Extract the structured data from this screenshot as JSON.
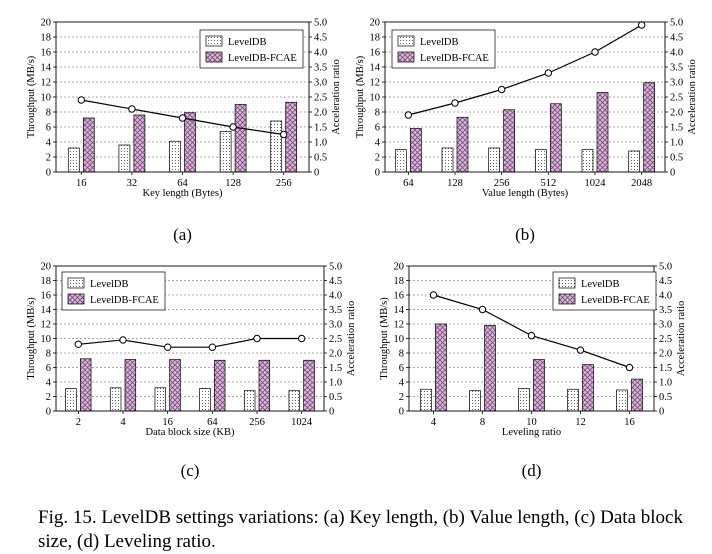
{
  "caption": "Fig. 15.  LevelDB settings variations: (a) Key length, (b) Value length, (c) Data block size, (d) Leveling ratio.",
  "colors": {
    "leveldb_fill": "#ffffff",
    "fcae_fill": "#d9b8d9",
    "pattern_dots": "#555555",
    "line": "#000000"
  },
  "chart_data": [
    {
      "type": "bar",
      "panel_label": "(a)",
      "xlabel": "Key length (Bytes)",
      "ylabel": "Throughput (MB/s)",
      "y2label": "Acceleration ratio",
      "categories": [
        "16",
        "32",
        "64",
        "128",
        "256"
      ],
      "ylim": [
        0,
        20
      ],
      "yticks": [
        0,
        2,
        4,
        6,
        8,
        10,
        12,
        14,
        16,
        18,
        20
      ],
      "y2lim": [
        0,
        5
      ],
      "y2ticks": [
        "0",
        "0.5",
        "1.0",
        "1.5",
        "2.0",
        "2.5",
        "3.0",
        "3.5",
        "4.0",
        "4.5",
        "5.0"
      ],
      "grid": true,
      "legend": "top-right",
      "series": [
        {
          "name": "LevelDB",
          "kind": "bar",
          "values": [
            3.2,
            3.6,
            4.1,
            5.4,
            6.8
          ]
        },
        {
          "name": "LevelDB-FCAE",
          "kind": "bar",
          "values": [
            7.2,
            7.6,
            7.9,
            9.0,
            9.3
          ]
        },
        {
          "kind": "line",
          "axis": "right",
          "values": [
            2.4,
            2.1,
            1.8,
            1.5,
            1.25
          ]
        }
      ]
    },
    {
      "type": "bar",
      "panel_label": "(b)",
      "xlabel": "Value length (Bytes)",
      "ylabel": "Throughput (MB/s)",
      "y2label": "Acceleration ratio",
      "categories": [
        "64",
        "128",
        "256",
        "512",
        "1024",
        "2048"
      ],
      "ylim": [
        0,
        20
      ],
      "yticks": [
        0,
        2,
        4,
        6,
        8,
        10,
        12,
        14,
        16,
        18,
        20
      ],
      "y2lim": [
        0,
        5
      ],
      "y2ticks": [
        "0",
        "0.5",
        "1.0",
        "1.5",
        "2.0",
        "2.5",
        "3.0",
        "3.5",
        "4.0",
        "4.5",
        "5.0"
      ],
      "grid": true,
      "legend": "top-left",
      "series": [
        {
          "name": "LevelDB",
          "kind": "bar",
          "values": [
            3.0,
            3.2,
            3.2,
            3.0,
            3.0,
            2.8
          ]
        },
        {
          "name": "LevelDB-FCAE",
          "kind": "bar",
          "values": [
            5.8,
            7.3,
            8.3,
            9.1,
            10.6,
            11.9
          ]
        },
        {
          "kind": "line",
          "axis": "right",
          "values": [
            1.9,
            2.3,
            2.75,
            3.3,
            4.0,
            4.9
          ]
        }
      ]
    },
    {
      "type": "bar",
      "panel_label": "(c)",
      "xlabel": "Data block size (KB)",
      "ylabel": "Throughput (MB/s)",
      "y2label": "Acceleration ratio",
      "categories": [
        "2",
        "4",
        "16",
        "64",
        "256",
        "1024"
      ],
      "ylim": [
        0,
        20
      ],
      "yticks": [
        0,
        2,
        4,
        6,
        8,
        10,
        12,
        14,
        16,
        18,
        20
      ],
      "y2lim": [
        0,
        5
      ],
      "y2ticks": [
        "0",
        "0.5",
        "1.0",
        "1.5",
        "2.0",
        "2.5",
        "3.0",
        "3.5",
        "4.0",
        "4.5",
        "5.0"
      ],
      "grid": true,
      "legend": "top-left",
      "series": [
        {
          "name": "LevelDB",
          "kind": "bar",
          "values": [
            3.1,
            3.2,
            3.2,
            3.1,
            2.8,
            2.8
          ]
        },
        {
          "name": "LevelDB-FCAE",
          "kind": "bar",
          "values": [
            7.2,
            7.1,
            7.1,
            7.0,
            7.0,
            7.0
          ]
        },
        {
          "kind": "line",
          "axis": "right",
          "values": [
            2.3,
            2.45,
            2.2,
            2.2,
            2.5,
            2.5
          ]
        }
      ]
    },
    {
      "type": "bar",
      "panel_label": "(d)",
      "xlabel": "Leveling ratio",
      "ylabel": "Throughput (MB/s)",
      "y2label": "Acceleration ratio",
      "categories": [
        "4",
        "8",
        "10",
        "12",
        "16"
      ],
      "ylim": [
        0,
        20
      ],
      "yticks": [
        0,
        2,
        4,
        6,
        8,
        10,
        12,
        14,
        16,
        18,
        20
      ],
      "y2lim": [
        0,
        5
      ],
      "y2ticks": [
        "0",
        "0.5",
        "1.0",
        "1.5",
        "2.0",
        "2.5",
        "3.0",
        "3.5",
        "4.0",
        "4.5",
        "5.0"
      ],
      "grid": true,
      "legend": "top-right",
      "series": [
        {
          "name": "LevelDB",
          "kind": "bar",
          "values": [
            3.0,
            2.8,
            3.1,
            3.0,
            2.9
          ]
        },
        {
          "name": "LevelDB-FCAE",
          "kind": "bar",
          "values": [
            12.0,
            11.8,
            7.1,
            6.4,
            4.4
          ]
        },
        {
          "kind": "line",
          "axis": "right",
          "values": [
            4.0,
            3.5,
            2.6,
            2.1,
            1.5
          ]
        }
      ]
    }
  ]
}
